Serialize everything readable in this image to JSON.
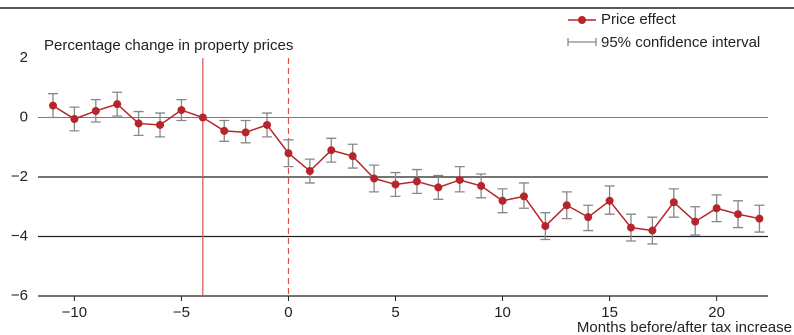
{
  "chart_data": {
    "type": "errorline",
    "y_label": "Percentage change in property prices",
    "x_label": "Months before/after tax increase",
    "x": [
      -11,
      -10,
      -9,
      -8,
      -7,
      -6,
      -5,
      -4,
      -3,
      -2,
      -1,
      0,
      1,
      2,
      3,
      4,
      5,
      6,
      7,
      8,
      9,
      10,
      11,
      12,
      13,
      14,
      15,
      16,
      17,
      18,
      19,
      20,
      21,
      22
    ],
    "series": [
      {
        "name": "Price effect",
        "color": "#b5252b",
        "values": [
          0.4,
          -0.05,
          0.22,
          0.45,
          -0.2,
          -0.25,
          0.25,
          0.0,
          -0.45,
          -0.5,
          -0.25,
          -1.2,
          -1.8,
          -1.1,
          -1.3,
          -2.05,
          -2.25,
          -2.15,
          -2.35,
          -2.1,
          -2.3,
          -2.8,
          -2.65,
          -3.65,
          -2.95,
          -3.35,
          -2.8,
          -3.7,
          -3.8,
          -2.85,
          -3.5,
          -3.05,
          -3.25,
          -3.4
        ]
      },
      {
        "name": "95% confidence interval",
        "color": "#888888",
        "lower": [
          0.0,
          -0.45,
          -0.15,
          0.05,
          -0.6,
          -0.65,
          -0.1,
          null,
          -0.8,
          -0.85,
          -0.65,
          -1.65,
          -2.2,
          -1.5,
          -1.7,
          -2.5,
          -2.65,
          -2.55,
          -2.75,
          -2.5,
          -2.7,
          -3.2,
          -3.05,
          -4.1,
          -3.4,
          -3.8,
          -3.25,
          -4.15,
          -4.25,
          -3.35,
          -3.95,
          -3.5,
          -3.7,
          -3.85
        ],
        "upper": [
          0.8,
          0.35,
          0.6,
          0.85,
          0.2,
          0.15,
          0.6,
          null,
          -0.1,
          -0.1,
          0.15,
          -0.75,
          -1.4,
          -0.7,
          -0.9,
          -1.6,
          -1.85,
          -1.75,
          -1.95,
          -1.65,
          -1.9,
          -2.4,
          -2.2,
          -3.2,
          -2.5,
          -2.95,
          -2.3,
          -3.25,
          -3.35,
          -2.4,
          -3.0,
          -2.6,
          -2.8,
          -2.95
        ]
      }
    ],
    "xlim": [
      -11.7,
      22.4
    ],
    "xticks": [
      {
        "value": -10,
        "label": "−10"
      },
      {
        "value": -5,
        "label": "−5"
      },
      0,
      5,
      10,
      15,
      20
    ],
    "ylim": [
      -6,
      2
    ],
    "yticks": [
      {
        "value": -6,
        "label": "−6"
      },
      {
        "value": -4,
        "label": "−4"
      },
      {
        "value": -2,
        "label": "−2"
      },
      0,
      2
    ],
    "grid": true,
    "zero_line_color": "#d9534f",
    "vlines": [
      {
        "x": -4,
        "style": "solid",
        "color": "#d9534f"
      },
      {
        "x": 0,
        "style": "dashed",
        "color": "#d9534f"
      }
    ],
    "legend": "top-right"
  }
}
